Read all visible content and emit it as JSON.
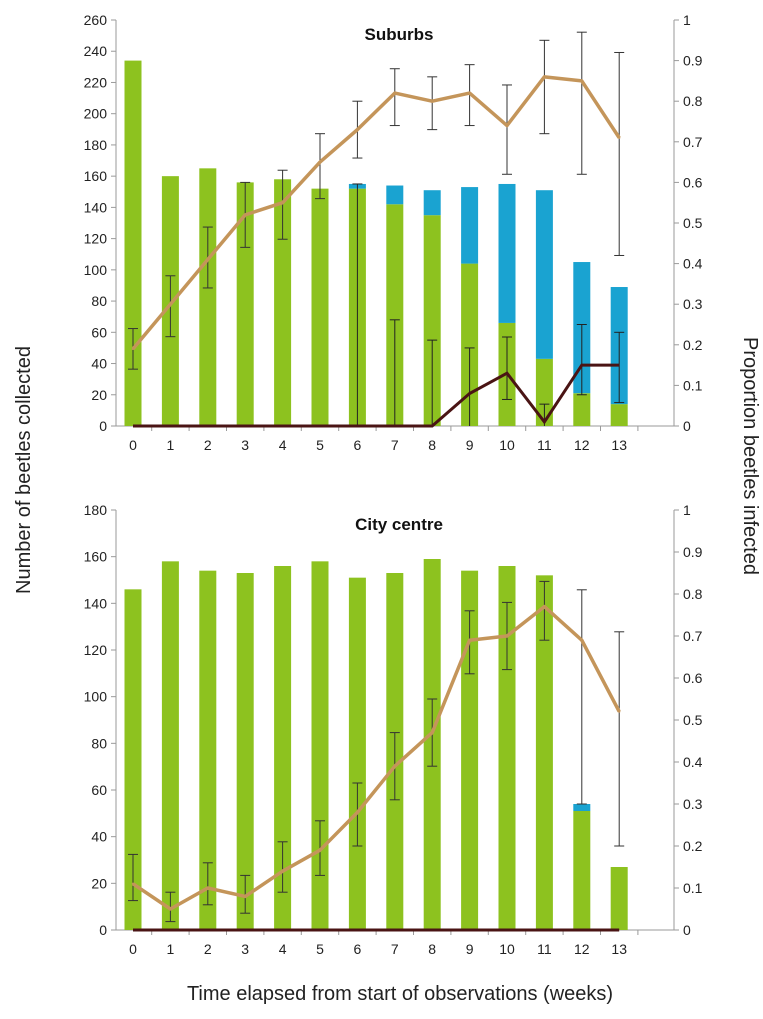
{
  "colors": {
    "bar_green": "#8dc21f",
    "bar_blue": "#1aa3d1",
    "line_tan": "#c4955a",
    "line_dark": "#4a1414",
    "axis": "#9a9a9a",
    "text": "#222222"
  },
  "labels": {
    "y_left": "Number of beetles collected",
    "y_right": "Proportion beetles infected",
    "x": "Time elapsed from start of observations (weeks)"
  },
  "chart_data": [
    {
      "type": "bar",
      "title": "Suburbs",
      "categories": [
        "0",
        "1",
        "2",
        "3",
        "4",
        "5",
        "6",
        "7",
        "8",
        "9",
        "10",
        "11",
        "12",
        "13"
      ],
      "ylim": [
        0,
        260
      ],
      "y_ticks": [
        "0",
        "20",
        "40",
        "60",
        "80",
        "100",
        "120",
        "140",
        "160",
        "180",
        "200",
        "220",
        "240",
        "260"
      ],
      "y2lim": [
        0,
        1
      ],
      "y2_ticks": [
        "0",
        "0.1",
        "0.2",
        "0.3",
        "0.4",
        "0.5",
        "0.6",
        "0.7",
        "0.8",
        "0.9",
        "1"
      ],
      "stacked_bars": {
        "green": [
          234,
          160,
          165,
          156,
          158,
          152,
          152,
          142,
          135,
          104,
          66,
          43,
          21,
          14
        ],
        "blue": [
          0,
          0,
          0,
          0,
          0,
          0,
          3,
          12,
          16,
          49,
          89,
          108,
          84,
          75
        ]
      },
      "bar_error": {
        "low": [
          null,
          null,
          null,
          null,
          null,
          null,
          0,
          0,
          0,
          0,
          0,
          0,
          0,
          0
        ],
        "high": [
          null,
          null,
          null,
          null,
          null,
          null,
          155,
          68,
          55,
          50,
          57,
          14,
          65,
          60
        ],
        "lowv": [
          null,
          null,
          null,
          null,
          null,
          null,
          0,
          0,
          0,
          0,
          17,
          0,
          20,
          15
        ]
      },
      "line_proportion": {
        "values": [
          0.19,
          0.3,
          0.41,
          0.52,
          0.55,
          0.65,
          0.73,
          0.82,
          0.8,
          0.82,
          0.74,
          0.86,
          0.85,
          0.71
        ],
        "err_low": [
          0.14,
          0.22,
          0.34,
          0.44,
          0.46,
          0.56,
          0.66,
          0.74,
          0.73,
          0.74,
          0.62,
          0.72,
          0.62,
          0.42
        ],
        "err_high": [
          0.24,
          0.37,
          0.49,
          0.6,
          0.63,
          0.72,
          0.8,
          0.88,
          0.86,
          0.89,
          0.84,
          0.95,
          0.97,
          0.92
        ]
      },
      "line_dark": {
        "values": [
          0,
          0,
          0,
          0,
          0,
          0,
          0,
          0,
          0,
          0.08,
          0.13,
          0.01,
          0.15,
          0.15
        ]
      }
    },
    {
      "type": "bar",
      "title": "City centre",
      "categories": [
        "0",
        "1",
        "2",
        "3",
        "4",
        "5",
        "6",
        "7",
        "8",
        "9",
        "10",
        "11",
        "12",
        "13"
      ],
      "ylim": [
        0,
        180
      ],
      "y_ticks": [
        "0",
        "20",
        "40",
        "60",
        "80",
        "100",
        "120",
        "140",
        "160",
        "180"
      ],
      "y2lim": [
        0,
        1
      ],
      "y2_ticks": [
        "0",
        "0.1",
        "0.2",
        "0.3",
        "0.4",
        "0.5",
        "0.6",
        "0.7",
        "0.8",
        "0.9",
        "1"
      ],
      "stacked_bars": {
        "green": [
          146,
          158,
          154,
          153,
          156,
          158,
          151,
          153,
          159,
          154,
          156,
          152,
          51,
          27
        ],
        "blue": [
          0,
          0,
          0,
          0,
          0,
          0,
          0,
          0,
          0,
          0,
          0,
          0,
          3,
          0
        ]
      },
      "bar_error": {
        "low": [],
        "high": [],
        "lowv": []
      },
      "line_proportion": {
        "values": [
          0.11,
          0.05,
          0.1,
          0.08,
          0.14,
          0.19,
          0.28,
          0.39,
          0.47,
          0.69,
          0.7,
          0.77,
          0.69,
          0.52
        ],
        "err_low": [
          0.07,
          0.02,
          0.06,
          0.04,
          0.09,
          0.13,
          0.2,
          0.31,
          0.39,
          0.61,
          0.62,
          0.69,
          0.3,
          0.2
        ],
        "err_high": [
          0.18,
          0.09,
          0.16,
          0.13,
          0.21,
          0.26,
          0.35,
          0.47,
          0.55,
          0.76,
          0.78,
          0.83,
          0.81,
          0.71
        ]
      },
      "line_dark": {
        "values": [
          0,
          0,
          0,
          0,
          0,
          0,
          0,
          0,
          0,
          0,
          0,
          0,
          0,
          0
        ]
      }
    }
  ]
}
